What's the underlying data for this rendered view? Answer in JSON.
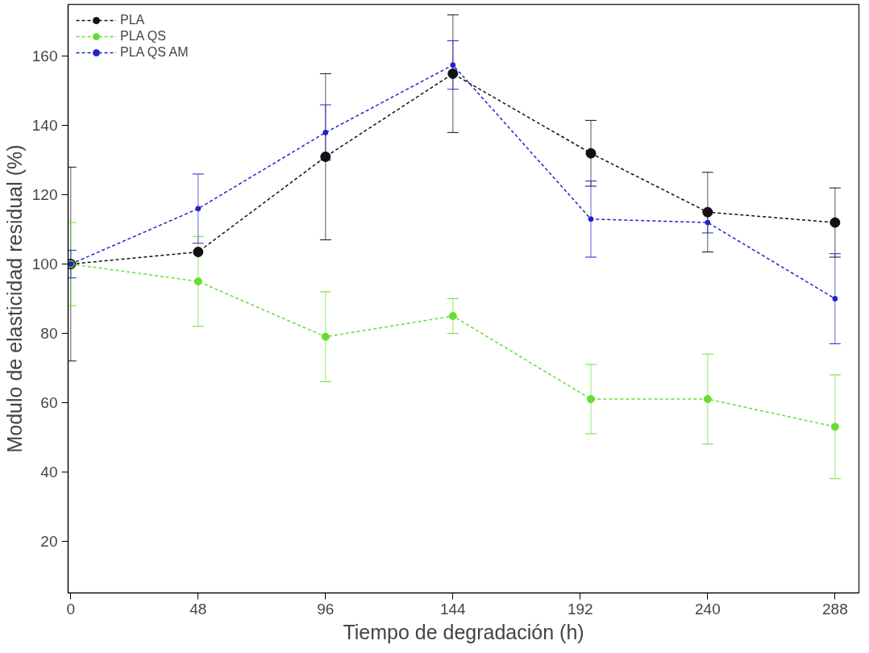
{
  "chart_data": {
    "type": "line",
    "xlabel": "Tiempo de degradación (h)",
    "ylabel": "Modulo de elasticidad residual (%)",
    "x": [
      0,
      48,
      96,
      144,
      196,
      240,
      288
    ],
    "series": [
      {
        "name": "PLA",
        "color": "#111111",
        "values": [
          100,
          103.5,
          131,
          155,
          132,
          115,
          112
        ],
        "errors": [
          28,
          null,
          24,
          17,
          9.5,
          11.5,
          10
        ]
      },
      {
        "name": "PLA QS",
        "color": "#66dd33",
        "values": [
          100,
          95,
          79,
          85,
          61,
          61,
          53
        ],
        "errors": [
          12,
          13,
          13,
          5,
          10,
          13,
          15
        ]
      },
      {
        "name": "PLA QS AM",
        "color": "#2222cc",
        "values": [
          100,
          116,
          138,
          157.5,
          113,
          112,
          90
        ],
        "errors": [
          4,
          10,
          8,
          7,
          11,
          3,
          13
        ]
      }
    ],
    "xlim": [
      -1,
      297
    ],
    "ylim": [
      5,
      175
    ],
    "xticks": [
      0,
      48,
      96,
      144,
      192,
      240,
      288
    ],
    "yticks": [
      20,
      40,
      60,
      80,
      100,
      120,
      140,
      160
    ],
    "grid": false,
    "legend": "top left",
    "marker": "circle",
    "line_style": "dashed"
  }
}
